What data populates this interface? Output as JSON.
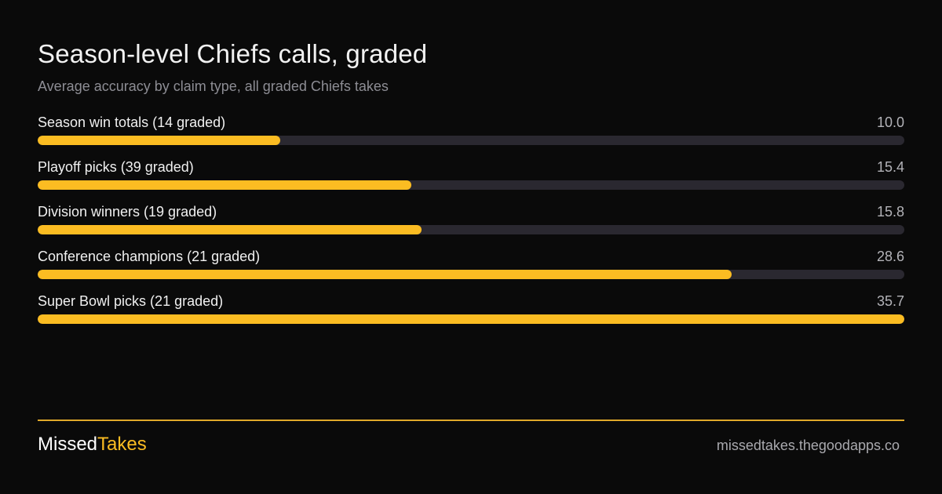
{
  "title": "Season-level Chiefs calls, graded",
  "subtitle": "Average accuracy by claim type, all graded Chiefs takes",
  "chart_data": {
    "type": "bar",
    "orientation": "horizontal",
    "categories": [
      "Season win totals (14 graded)",
      "Playoff picks (39 graded)",
      "Division winners (19 graded)",
      "Conference champions (21 graded)",
      "Super Bowl picks (21 graded)"
    ],
    "values": [
      10.0,
      15.4,
      15.8,
      28.6,
      35.7
    ],
    "value_labels": [
      "10.0",
      "15.4",
      "15.8",
      "28.6",
      "35.7"
    ],
    "xlim": [
      0,
      35.7
    ],
    "grid": false,
    "bar_color": "#fbbc22",
    "track_color": "#2a2830"
  },
  "footer": {
    "brand_part1": "Missed",
    "brand_part2": "Takes",
    "site": "missedtakes.thegoodapps.co"
  },
  "colors": {
    "background": "#0a0a0a",
    "accent": "#fbbc22",
    "divider": "#e0a92a"
  }
}
